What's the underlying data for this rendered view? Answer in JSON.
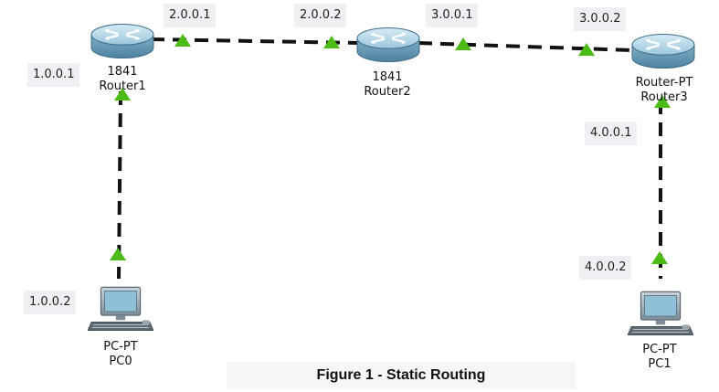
{
  "devices": {
    "router1": {
      "model": "1841",
      "name": "Router1"
    },
    "router2": {
      "model": "1841",
      "name": "Router2"
    },
    "router3": {
      "model": "Router-PT",
      "name": "Router3"
    },
    "pc0": {
      "model": "PC-PT",
      "name": "PC0"
    },
    "pc1": {
      "model": "PC-PT",
      "name": "PC1"
    }
  },
  "interfaces": {
    "r1_pc0": "1.0.0.1",
    "r1_r2": "2.0.0.1",
    "r2_r1": "2.0.0.2",
    "r2_r3": "3.0.0.1",
    "r3_r2": "3.0.0.2",
    "r3_pc1": "4.0.0.1",
    "pc0": "1.0.0.2",
    "pc1": "4.0.0.2"
  },
  "caption": "Figure 1 - Static Routing",
  "colors": {
    "link": "#111111",
    "link_up_indicator": "#4cbb17",
    "router_body": "#6f9fb9",
    "pc_screen": "#8fc0d8"
  }
}
